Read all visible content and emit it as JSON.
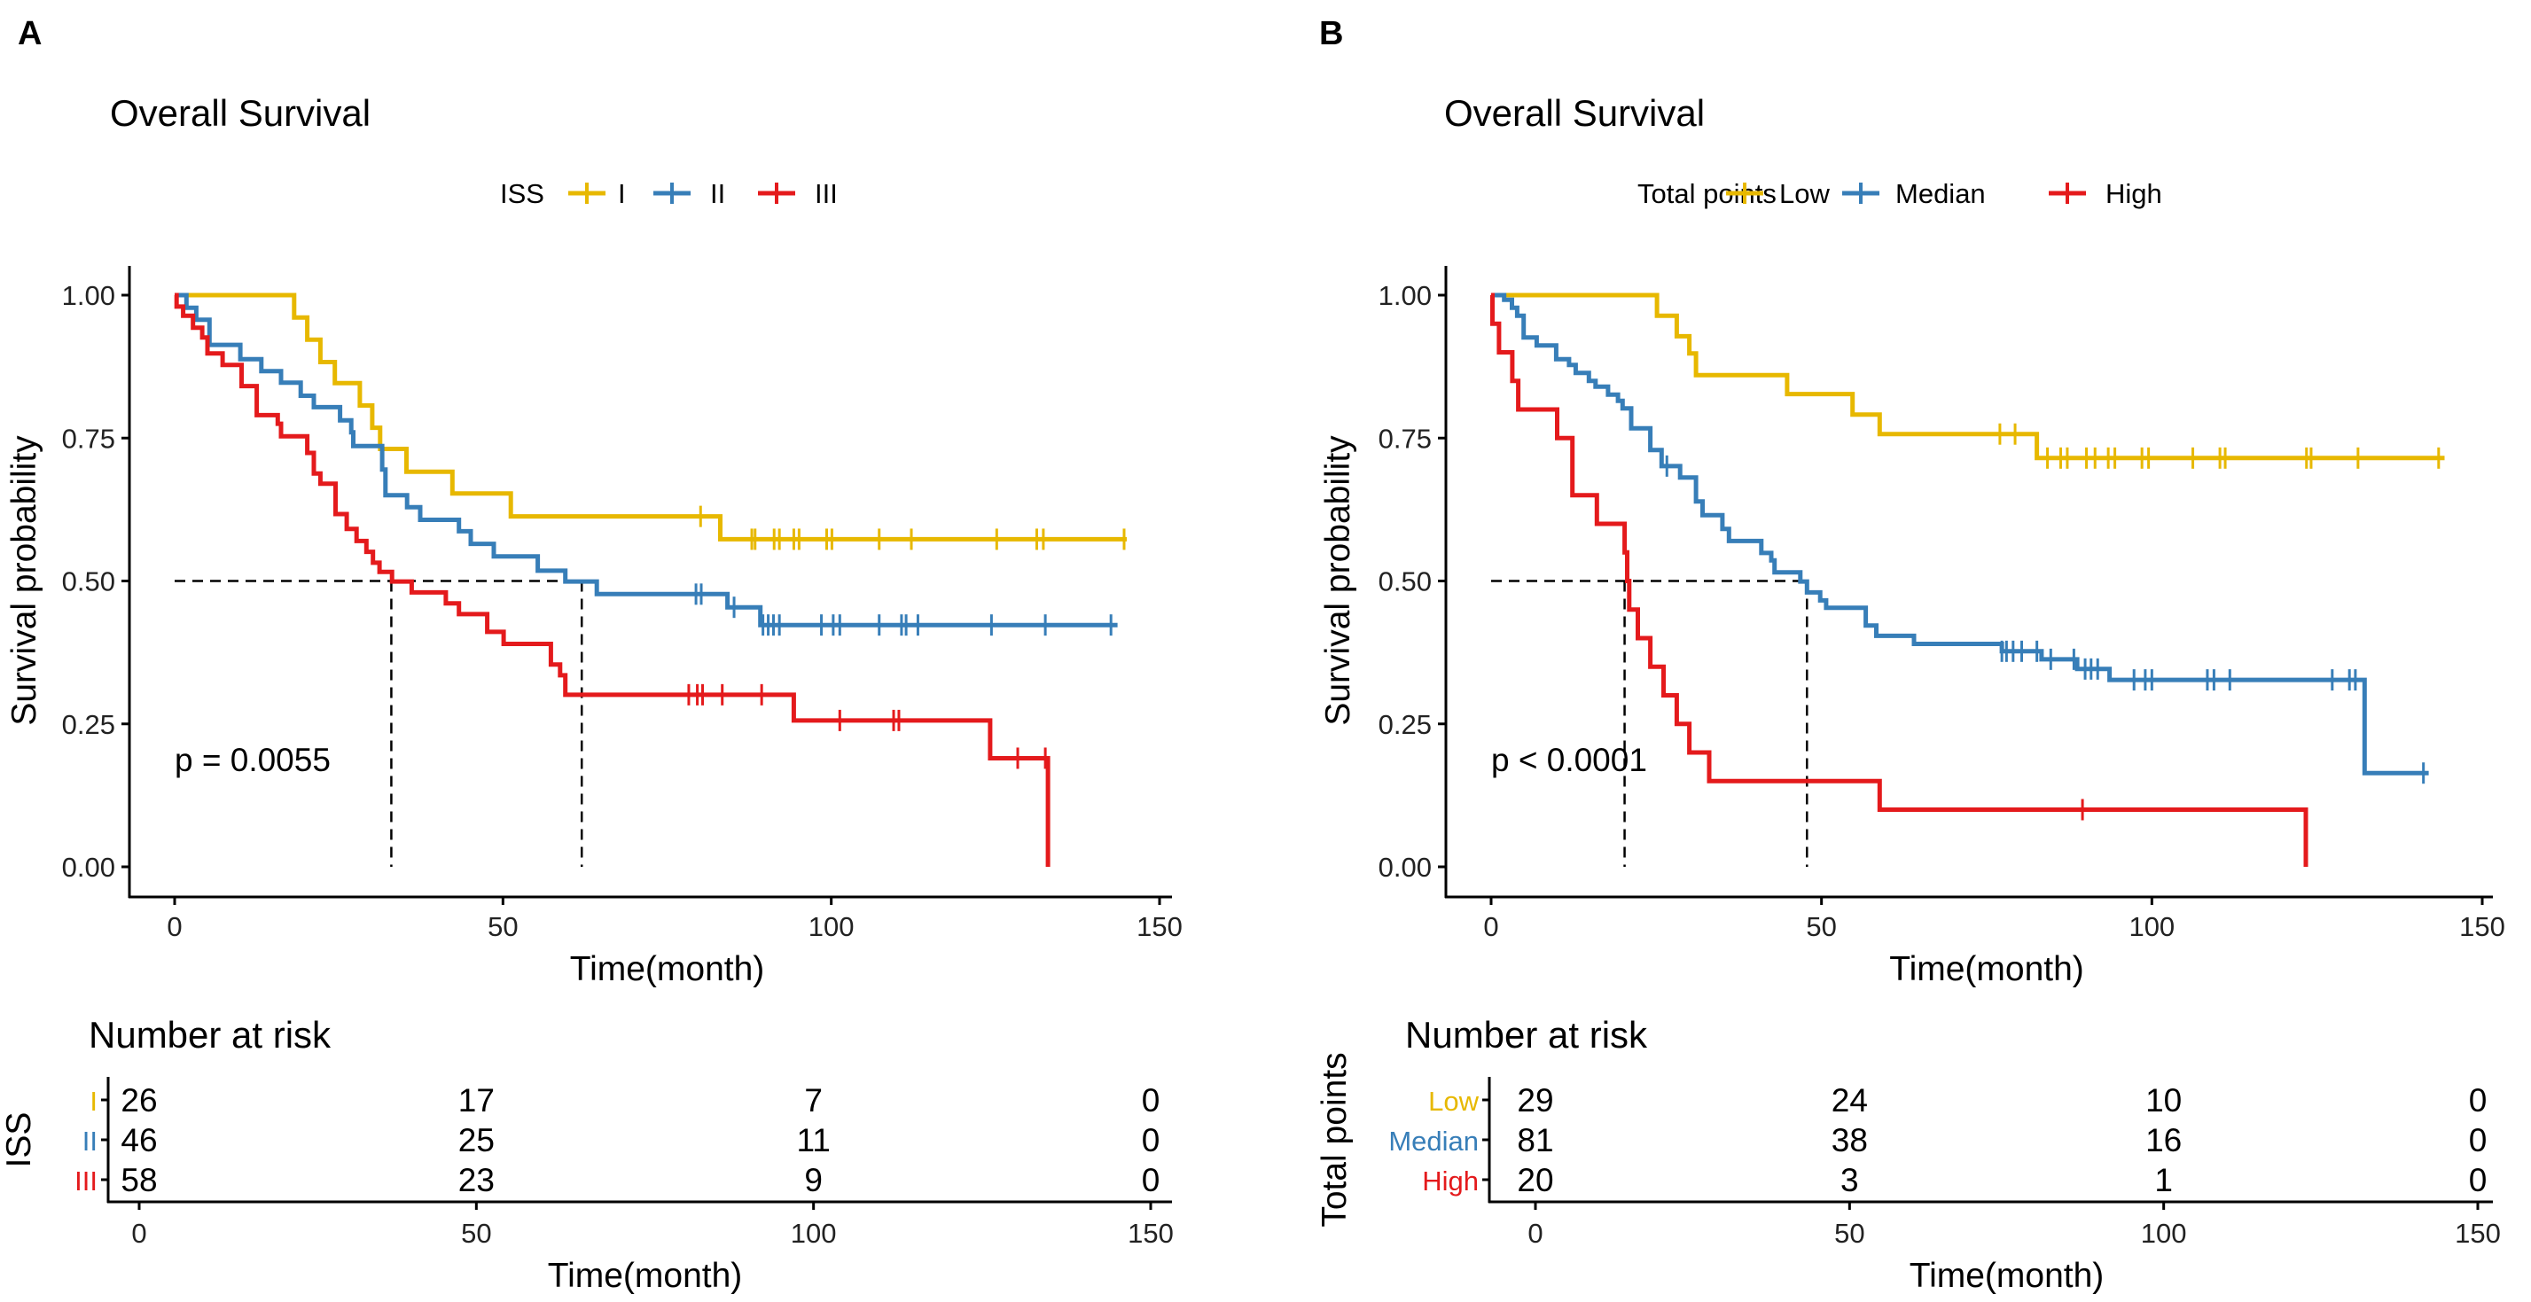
{
  "chart_data": [
    {
      "panel_label": "A",
      "type": "line",
      "subtype": "kaplan-meier",
      "title": "Overall Survival",
      "xlabel": "Time(month)",
      "ylabel": "Survival probability",
      "xlim": [
        0,
        150
      ],
      "ylim": [
        0,
        1
      ],
      "x_ticks": [
        "0",
        "50",
        "100",
        "150"
      ],
      "y_ticks": [
        "0.00",
        "0.25",
        "0.50",
        "0.75",
        "1.00"
      ],
      "grid": false,
      "legend": {
        "title": "ISS",
        "position": "top",
        "labels": [
          "I",
          "II",
          "III"
        ]
      },
      "p_value": "p = 0.0055",
      "median_lines": {
        "y": 0.5,
        "x": [
          33,
          62
        ]
      },
      "series": [
        {
          "name": "I",
          "color": "#E7B800",
          "times": [
            0,
            18.2,
            20.2,
            22.2,
            24.4,
            28.2,
            30.1,
            31.3,
            35.3,
            42.3,
            51.2,
            83.1
          ],
          "surv": [
            1,
            0.961,
            0.922,
            0.883,
            0.846,
            0.807,
            0.768,
            0.731,
            0.691,
            0.653,
            0.613,
            0.573
          ],
          "end": 145,
          "censor": [
            80.1,
            87.9,
            88.4,
            91.3,
            92.1,
            94.3,
            95.1,
            99.3,
            100.1,
            107.3,
            112.2,
            125.2,
            131.3,
            132.3,
            144.6
          ]
        },
        {
          "name": "II",
          "color": "#377EB8",
          "times": [
            0,
            1.8,
            3.3,
            5.3,
            10,
            13.2,
            16.2,
            19.2,
            21.2,
            25.2,
            26.9,
            27.2,
            31.6,
            32.1,
            35.4,
            37.4,
            43.3,
            45.1,
            48.6,
            55.3,
            59.5,
            64.3,
            84.2,
            89.2
          ],
          "surv": [
            1,
            0.978,
            0.957,
            0.913,
            0.888,
            0.867,
            0.847,
            0.824,
            0.804,
            0.781,
            0.76,
            0.736,
            0.695,
            0.65,
            0.629,
            0.607,
            0.587,
            0.565,
            0.543,
            0.518,
            0.499,
            0.477,
            0.454,
            0.423
          ],
          "end": 143.6,
          "censor": [
            79.4,
            80.2,
            85.2,
            89.6,
            90.4,
            91.2,
            92.1,
            98.5,
            100.3,
            101.3,
            107.3,
            110.7,
            111.4,
            113.2,
            124.4,
            132.6,
            142.6
          ]
        },
        {
          "name": "III",
          "color": "#E41A1C",
          "times": [
            0,
            0.3,
            1.3,
            2.8,
            4.2,
            5.0,
            7.3,
            10.2,
            12.5,
            15.7,
            16.2,
            20.2,
            21.2,
            22.2,
            24.5,
            26.2,
            27.7,
            29.2,
            30.2,
            31.2,
            33.1,
            36.1,
            41.3,
            43.3,
            47.6,
            50.1,
            57.3,
            58.7,
            59.5,
            94.3,
            124.2,
            133.0
          ],
          "surv": [
            1,
            0.98,
            0.964,
            0.943,
            0.926,
            0.898,
            0.878,
            0.841,
            0.79,
            0.775,
            0.753,
            0.724,
            0.688,
            0.67,
            0.617,
            0.591,
            0.57,
            0.551,
            0.532,
            0.516,
            0.499,
            0.48,
            0.461,
            0.442,
            0.411,
            0.39,
            0.354,
            0.335,
            0.301,
            0.256,
            0.19,
            0
          ],
          "end": 133.0,
          "censor": [
            78.3,
            79.6,
            80.4,
            83.4,
            89.4,
            101.3,
            109.5,
            110.3,
            128.4,
            132.6
          ]
        }
      ],
      "risk_table": {
        "title": "Number at risk",
        "ylabel": "ISS",
        "xlabel": "Time(month)",
        "x_ticks": [
          "0",
          "50",
          "100",
          "150"
        ],
        "rows": [
          {
            "label": "I",
            "color": "#E7B800",
            "values": [
              "26",
              "17",
              "7",
              "0"
            ]
          },
          {
            "label": "II",
            "color": "#377EB8",
            "values": [
              "46",
              "25",
              "11",
              "0"
            ]
          },
          {
            "label": "III",
            "color": "#E41A1C",
            "values": [
              "58",
              "23",
              "9",
              "0"
            ]
          }
        ]
      }
    },
    {
      "panel_label": "B",
      "type": "line",
      "subtype": "kaplan-meier",
      "title": "Overall Survival",
      "xlabel": "Time(month)",
      "ylabel": "Survival probability",
      "xlim": [
        0,
        150
      ],
      "ylim": [
        0,
        1
      ],
      "x_ticks": [
        "0",
        "50",
        "100",
        "150"
      ],
      "y_ticks": [
        "0.00",
        "0.25",
        "0.50",
        "0.75",
        "1.00"
      ],
      "grid": false,
      "legend": {
        "title": "Total points",
        "position": "top",
        "labels": [
          "Low",
          "Median",
          "High"
        ]
      },
      "p_value": "p < 0.0001",
      "median_lines": {
        "y": 0.5,
        "x": [
          20.2,
          47.8
        ]
      },
      "series": [
        {
          "name": "Low",
          "color": "#E7B800",
          "times": [
            0,
            25.1,
            28.1,
            30.0,
            31.0,
            44.8,
            54.7,
            58.8,
            82.6
          ],
          "surv": [
            1,
            0.964,
            0.928,
            0.898,
            0.86,
            0.827,
            0.791,
            0.757,
            0.715
          ],
          "end": 144.3,
          "censor": [
            77,
            79.3,
            84.2,
            86.2,
            87.2,
            90.1,
            91.4,
            93.4,
            94.4,
            98.5,
            99.5,
            106.2,
            110.3,
            111.1,
            123.4,
            124.1,
            131.2,
            143.4
          ]
        },
        {
          "name": "Median",
          "color": "#377EB8",
          "times": [
            0,
            1.97,
            3.15,
            3.94,
            4.93,
            6.9,
            9.85,
            11.8,
            12.8,
            14.8,
            15.8,
            17.7,
            19.2,
            19.9,
            21.2,
            24.1,
            25.8,
            28.6,
            31.0,
            32.0,
            35.0,
            36.0,
            40.9,
            42.4,
            42.9,
            46.8,
            47.8,
            49.8,
            50.7,
            56.7,
            58.3,
            64.0,
            77.3,
            83.3,
            88.7,
            93.6,
            132.2
          ],
          "surv": [
            1,
            0.992,
            0.978,
            0.964,
            0.926,
            0.912,
            0.888,
            0.878,
            0.864,
            0.85,
            0.84,
            0.826,
            0.815,
            0.802,
            0.767,
            0.729,
            0.701,
            0.681,
            0.639,
            0.615,
            0.591,
            0.57,
            0.549,
            0.536,
            0.515,
            0.499,
            0.48,
            0.466,
            0.453,
            0.422,
            0.404,
            0.39,
            0.377,
            0.363,
            0.346,
            0.327,
            0.164
          ],
          "end": 141.9,
          "censor": [
            26.6,
            77.3,
            78.0,
            79.0,
            80.3,
            82.6,
            84.7,
            88.2,
            89.9,
            90.8,
            91.8,
            97.3,
            99.0,
            100.0,
            108.4,
            109.4,
            111.8,
            127.3,
            129.9,
            130.8,
            141.1
          ]
        },
        {
          "name": "High",
          "color": "#E41A1C",
          "times": [
            0,
            0.2,
            1.2,
            3.2,
            4.1,
            10.0,
            12.3,
            16.0,
            20.2,
            20.6,
            20.9,
            22.2,
            24.1,
            26.1,
            28.1,
            30.0,
            33.0,
            58.8,
            123.3
          ],
          "surv": [
            1,
            0.95,
            0.9,
            0.85,
            0.8,
            0.75,
            0.65,
            0.6,
            0.55,
            0.5,
            0.45,
            0.4,
            0.35,
            0.3,
            0.25,
            0.2,
            0.15,
            0.1,
            0
          ],
          "end": 123.3,
          "censor": [
            89.5
          ]
        }
      ],
      "risk_table": {
        "title": "Number at risk",
        "ylabel": "Total points",
        "xlabel": "Time(month)",
        "x_ticks": [
          "0",
          "50",
          "100",
          "150"
        ],
        "rows": [
          {
            "label": "Low",
            "color": "#E7B800",
            "values": [
              "29",
              "24",
              "10",
              "0"
            ]
          },
          {
            "label": "Median",
            "color": "#377EB8",
            "values": [
              "81",
              "38",
              "16",
              "0"
            ]
          },
          {
            "label": "High",
            "color": "#E41A1C",
            "values": [
              "20",
              "3",
              "1",
              "0"
            ]
          }
        ]
      }
    }
  ]
}
